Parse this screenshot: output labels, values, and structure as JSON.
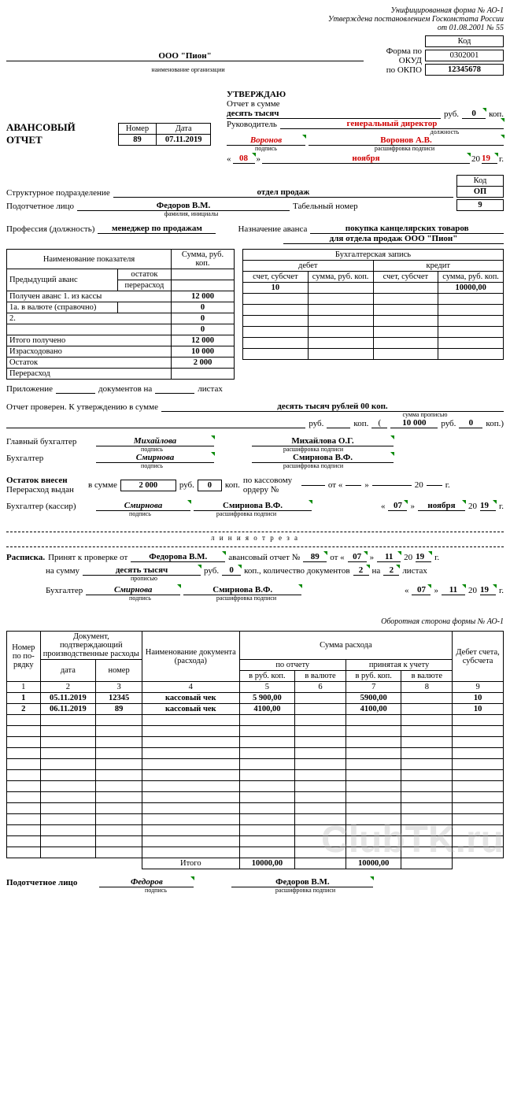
{
  "header": {
    "form_line1": "Унифицированная форма № АО-1",
    "form_line2": "Утверждена постановлением Госкомстата России",
    "form_line3": "от 01.08.2001 № 55",
    "kod_label": "Код",
    "okud_label": "Форма по ОКУД",
    "okud": "0302001",
    "okpo_label": "по ОКПО",
    "okpo": "12345678",
    "org": "ООО \"Пион\"",
    "org_sublabel": "наименование организации"
  },
  "approved": {
    "title": "УТВЕРЖДАЮ",
    "sum_label": "Отчет в сумме",
    "sum_words": "десять тысяч",
    "rub_label": "руб.",
    "rub_kop": "0",
    "kop_label": "коп.",
    "mgr_label": "Руководитель",
    "mgr_position": "генеральный директор",
    "position_sublabel": "должность",
    "mgr_sign": "Воронов",
    "mgr_name": "Воронов А.В.",
    "sign_sublabel": "подпись",
    "name_sublabel": "расшифровка подписи",
    "day": "08",
    "month": "ноября",
    "year_prefix": "20",
    "year": "19",
    "year_suffix": "г."
  },
  "main": {
    "title": "АВАНСОВЫЙ ОТЧЕТ",
    "number_label": "Номер",
    "date_label": "Дата",
    "number": "89",
    "date": "07.11.2019"
  },
  "info": {
    "dept_label": "Структурное подразделение",
    "dept": "отдел продаж",
    "kod_label": "Код",
    "kod": "ОП",
    "person_label": "Подотчетное лицо",
    "person": "Федоров В.М.",
    "person_sublabel": "фамилия, инициалы",
    "tab_label": "Табельный номер",
    "tab": "9",
    "prof_label": "Профессия (должность)",
    "prof": "менеджер по продажам",
    "purpose_label": "Назначение аванса",
    "purpose_line1": "покупка канцелярских товаров",
    "purpose_line2": "для отдела продаж ООО \"Пион\""
  },
  "left_table": {
    "h1": "Наименование показателя",
    "h2": "Сумма, руб. коп.",
    "prev_advance": "Предыдущий аванс",
    "ostatok": "остаток",
    "pererashod": "перерасход",
    "row1": "Получен аванс 1. из кассы",
    "val1": "12 000",
    "row1a": "1а. в валюте (справочно)",
    "val1a": "0",
    "row2": "2.",
    "val2": "0",
    "row_empty": "",
    "val_empty": "0",
    "total_recv": "Итого получено",
    "total_recv_val": "12 000",
    "spent": "Израсходовано",
    "spent_val": "10 000",
    "balance": "Остаток",
    "balance_val": "2 000",
    "overrun": "Перерасход"
  },
  "right_table": {
    "h1": "Бухгалтерская запись",
    "debit": "дебет",
    "credit": "кредит",
    "acct": "счет, субсчет",
    "sum": "сумма, руб. коп.",
    "debit_acct": "10",
    "credit_sum": "10000,00"
  },
  "attachments": {
    "label1": "Приложение",
    "label2": "документов на",
    "label3": "листах"
  },
  "checked": {
    "line1_label": "Отчет проверен. К утверждению в сумме",
    "line1_val": "десять тысяч рублей 00 коп.",
    "sub1": "сумма прописью",
    "rub_label": "руб.",
    "kop_label": "коп.",
    "amount": "10 000",
    "kop": "0"
  },
  "signers": {
    "chief_acc_label": "Главный бухгалтер",
    "chief_sign": "Михайлова",
    "chief_name": "Михайлова О.Г.",
    "acc_label": "Бухгалтер",
    "acc_sign": "Смирнова",
    "acc_name": "Смирнова В.Ф.",
    "sign_sublabel": "подпись",
    "name_sublabel": "расшифровка подписи"
  },
  "balance_out": {
    "balance_label": "Остаток внесен",
    "overrun_label": "Перерасход выдан",
    "sum_label": "в сумме",
    "sum": "2 000",
    "rub": "руб.",
    "kop_val": "0",
    "kop": "коп.",
    "order_label1": "по кассовому",
    "order_label2": "ордеру №",
    "ot": "от «",
    "close": "»",
    "year_prefix": "20",
    "year_suffix": "г."
  },
  "cashier": {
    "label": "Бухгалтер (кассир)",
    "sign": "Смирнова",
    "name": "Смирнова В.Ф.",
    "day": "07",
    "month": "ноября",
    "year": "19"
  },
  "cut": "л и н и я   о т р е з а",
  "receipt": {
    "title": "Расписка.",
    "from_label": "Принят к проверке от",
    "from": "Федорова В.М.",
    "report_label": "авансовый отчет №",
    "report_no": "89",
    "ot": "от «",
    "day": "07",
    "month": "11",
    "year_prefix": "20",
    "year": "19",
    "year_suffix": "г.",
    "sum_label": "на сумму",
    "sum_words": "десять тысяч",
    "sum_sublabel": "прописью",
    "rub": "руб.",
    "kop_val": "0",
    "kop": "коп., количество документов",
    "docs": "2",
    "na": "на",
    "sheets": "2",
    "sheets_label": "листах",
    "acc_label": "Бухгалтер",
    "acc_sign": "Смирнова",
    "acc_name": "Смирнова В.Ф.",
    "day2": "07",
    "month2": "11",
    "year2": "19"
  },
  "back": {
    "title": "Оборотная сторона формы № АО-1",
    "cols": {
      "c1": "Номер по по- рядку",
      "c2": "Документ, подтверждающий производственные расходы",
      "c2a": "дата",
      "c2b": "номер",
      "c3": "Наименование документа (расхода)",
      "c4": "Сумма расхода",
      "c4a": "по отчету",
      "c4b": "принятая к учету",
      "c4c": "в руб. коп.",
      "c4d": "в валюте",
      "c5": "Дебет счета, субсчета"
    },
    "nums": [
      "1",
      "2",
      "3",
      "4",
      "5",
      "6",
      "7",
      "8",
      "9"
    ],
    "rows": [
      {
        "n": "1",
        "date": "05.11.2019",
        "num": "12345",
        "name": "кассовый чек",
        "r1": "5 900,00",
        "r2": "",
        "r3": "5900,00",
        "r4": "",
        "debit": "10"
      },
      {
        "n": "2",
        "date": "06.11.2019",
        "num": "89",
        "name": "кассовый чек",
        "r1": "4100,00",
        "r2": "",
        "r3": "4100,00",
        "r4": "",
        "debit": "10"
      }
    ],
    "total_label": "Итого",
    "total1": "10000,00",
    "total3": "10000,00",
    "empty_rows": 13
  },
  "footer": {
    "label": "Подотчетное лицо",
    "sign": "Федоров",
    "name": "Федоров В.М.",
    "sign_sublabel": "подпись",
    "name_sublabel": "расшифровка подписи"
  },
  "colors": {
    "red": "#d00000",
    "green": "#0a8a0a",
    "watermark": "rgba(180,180,180,0.35)"
  }
}
